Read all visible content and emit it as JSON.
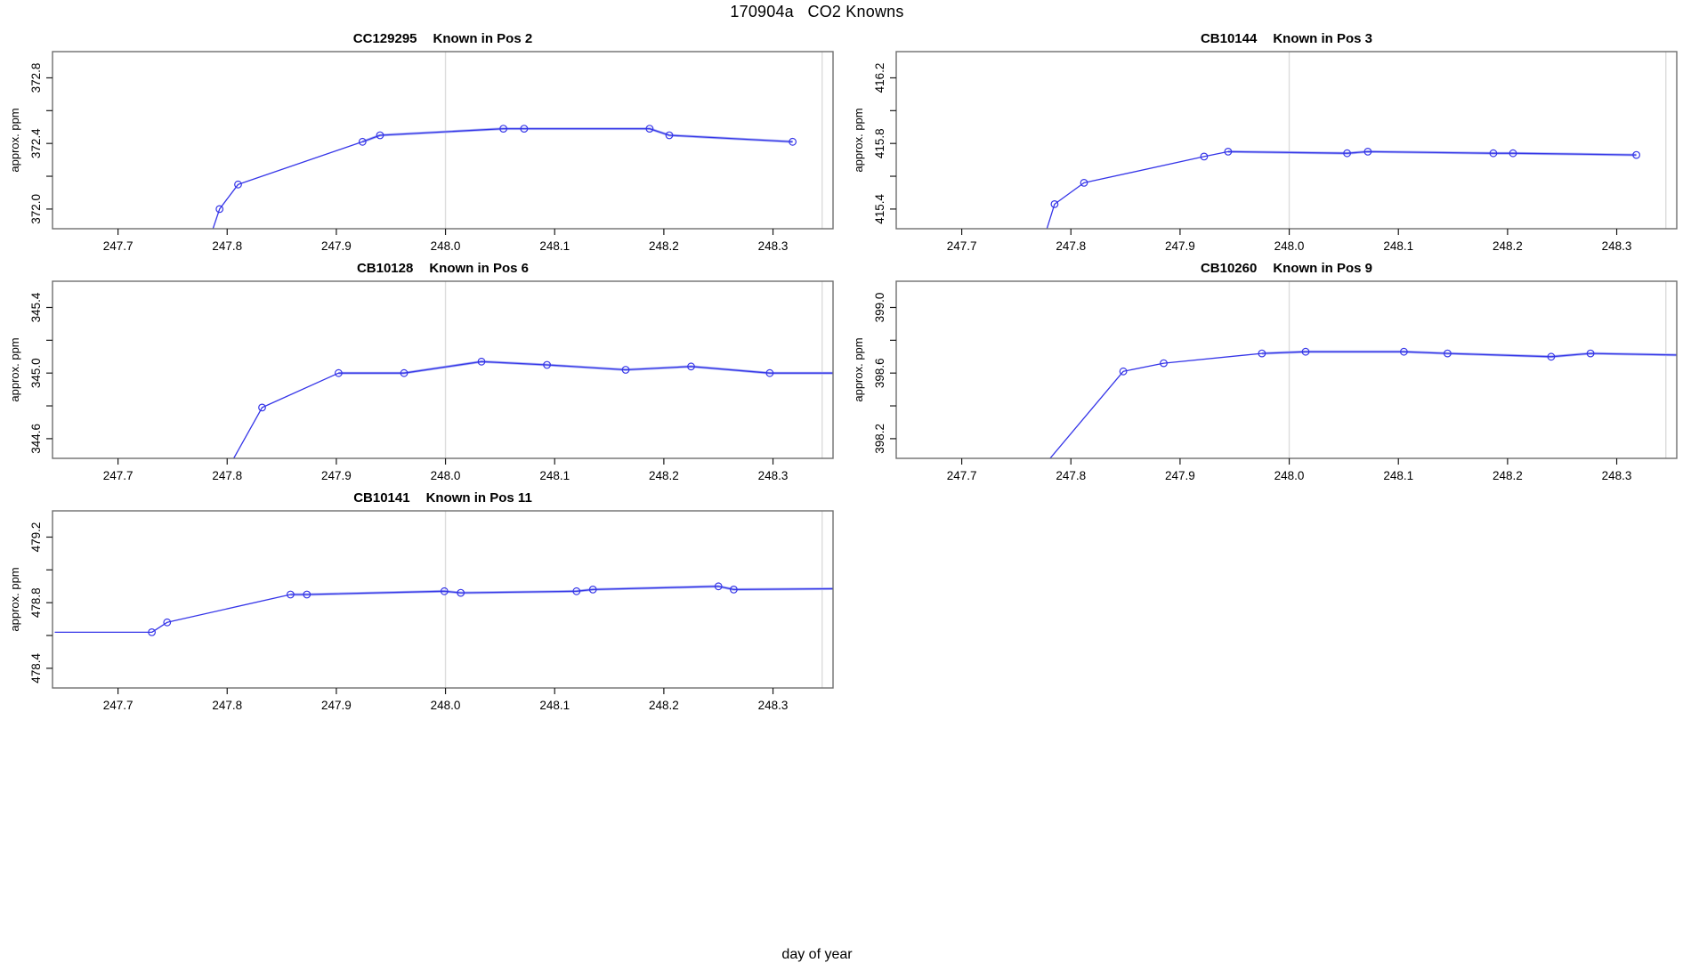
{
  "figure": {
    "main_title": "170904a   CO2 Knowns",
    "x_axis_label": "day of year",
    "y_axis_label": "approx. ppm",
    "x_tick_labels": [
      "247.7",
      "247.8",
      "247.9",
      "248.0",
      "248.1",
      "248.2",
      "248.3"
    ],
    "x_ticks": [
      247.7,
      247.8,
      247.9,
      248.0,
      248.1,
      248.2,
      248.3
    ],
    "grid_x": [
      248.0,
      248.345
    ],
    "colors": {
      "line": "#3535e8",
      "line_soft": "#b2b9f4",
      "grid": "#dcdcdc",
      "frame": "#6e6e6e",
      "tick": "#1a1a1a",
      "text": "#000000"
    }
  },
  "chart_data": [
    {
      "type": "line",
      "title_sample": "CC129295",
      "title_label": "Known in Pos 2",
      "xlabel": "day of year",
      "ylabel": "approx. ppm",
      "xlim": [
        247.64,
        248.355
      ],
      "ylim": [
        371.88,
        372.96
      ],
      "y_ticks": [
        372.0,
        372.2,
        372.4,
        372.6,
        372.8
      ],
      "y_tick_labels": [
        "372.0",
        "372.4",
        "372.8"
      ],
      "lead_point": [
        247.787,
        371.88
      ],
      "tail_point": null,
      "soft_from": 2,
      "points": [
        [
          247.793,
          372.0
        ],
        [
          247.81,
          372.15
        ],
        [
          247.924,
          372.41
        ],
        [
          247.94,
          372.45
        ],
        [
          248.053,
          372.49
        ],
        [
          248.072,
          372.49
        ],
        [
          248.187,
          372.49
        ],
        [
          248.205,
          372.45
        ],
        [
          248.318,
          372.41
        ]
      ]
    },
    {
      "type": "line",
      "title_sample": "CB10144",
      "title_label": "Known in Pos 3",
      "xlabel": "day of year",
      "ylabel": "approx. ppm",
      "xlim": [
        247.64,
        248.355
      ],
      "ylim": [
        415.28,
        416.36
      ],
      "y_ticks": [
        415.4,
        415.6,
        415.8,
        416.0,
        416.2
      ],
      "y_tick_labels": [
        "415.4",
        "415.8",
        "416.2"
      ],
      "lead_point": [
        247.778,
        415.28
      ],
      "tail_point": null,
      "soft_from": 3,
      "points": [
        [
          247.785,
          415.43
        ],
        [
          247.812,
          415.56
        ],
        [
          247.922,
          415.72
        ],
        [
          247.944,
          415.75
        ],
        [
          248.053,
          415.74
        ],
        [
          248.072,
          415.75
        ],
        [
          248.187,
          415.74
        ],
        [
          248.205,
          415.74
        ],
        [
          248.318,
          415.73
        ]
      ]
    },
    {
      "type": "line",
      "title_sample": "CB10128",
      "title_label": "Known in Pos 6",
      "xlabel": "day of year",
      "ylabel": "approx. ppm",
      "xlim": [
        247.64,
        248.355
      ],
      "ylim": [
        344.48,
        345.56
      ],
      "y_ticks": [
        344.6,
        344.8,
        345.0,
        345.2,
        345.4
      ],
      "y_tick_labels": [
        "344.6",
        "345.0",
        "345.4"
      ],
      "lead_point": [
        247.806,
        344.48
      ],
      "tail_point": [
        248.355,
        345.0
      ],
      "soft_from": 1,
      "points": [
        [
          247.832,
          344.79
        ],
        [
          247.902,
          345.0
        ],
        [
          247.962,
          345.0
        ],
        [
          248.033,
          345.07
        ],
        [
          248.093,
          345.05
        ],
        [
          248.165,
          345.02
        ],
        [
          248.225,
          345.04
        ],
        [
          248.297,
          345.0
        ]
      ]
    },
    {
      "type": "line",
      "title_sample": "CB10260",
      "title_label": "Known in Pos 9",
      "xlabel": "day of year",
      "ylabel": "approx. ppm",
      "xlim": [
        247.64,
        248.355
      ],
      "ylim": [
        398.08,
        399.16
      ],
      "y_ticks": [
        398.2,
        398.4,
        398.6,
        398.8,
        399.0
      ],
      "y_tick_labels": [
        "398.2",
        "398.6",
        "399.0"
      ],
      "lead_point": [
        247.781,
        398.08
      ],
      "tail_point": [
        248.355,
        398.71
      ],
      "soft_from": 2,
      "points": [
        [
          247.848,
          398.61
        ],
        [
          247.885,
          398.66
        ],
        [
          247.975,
          398.72
        ],
        [
          248.015,
          398.73
        ],
        [
          248.105,
          398.73
        ],
        [
          248.145,
          398.72
        ],
        [
          248.24,
          398.7
        ],
        [
          248.276,
          398.72
        ]
      ]
    },
    {
      "type": "line",
      "title_sample": "CB10141",
      "title_label": "Known in Pos 11",
      "xlabel": "day of year",
      "ylabel": "approx. ppm",
      "xlim": [
        247.64,
        248.355
      ],
      "ylim": [
        478.28,
        479.36
      ],
      "y_ticks": [
        478.4,
        478.6,
        478.8,
        479.0,
        479.2
      ],
      "y_tick_labels": [
        "478.4",
        "478.8",
        "479.2"
      ],
      "lead_point": [
        247.642,
        478.62
      ],
      "tail_point": [
        248.355,
        478.885
      ],
      "soft_from": 2,
      "points": [
        [
          247.731,
          478.62
        ],
        [
          247.745,
          478.68
        ],
        [
          247.858,
          478.85
        ],
        [
          247.873,
          478.85
        ],
        [
          247.999,
          478.87
        ],
        [
          248.014,
          478.86
        ],
        [
          248.12,
          478.87
        ],
        [
          248.135,
          478.88
        ],
        [
          248.25,
          478.9
        ],
        [
          248.264,
          478.88
        ]
      ]
    }
  ]
}
